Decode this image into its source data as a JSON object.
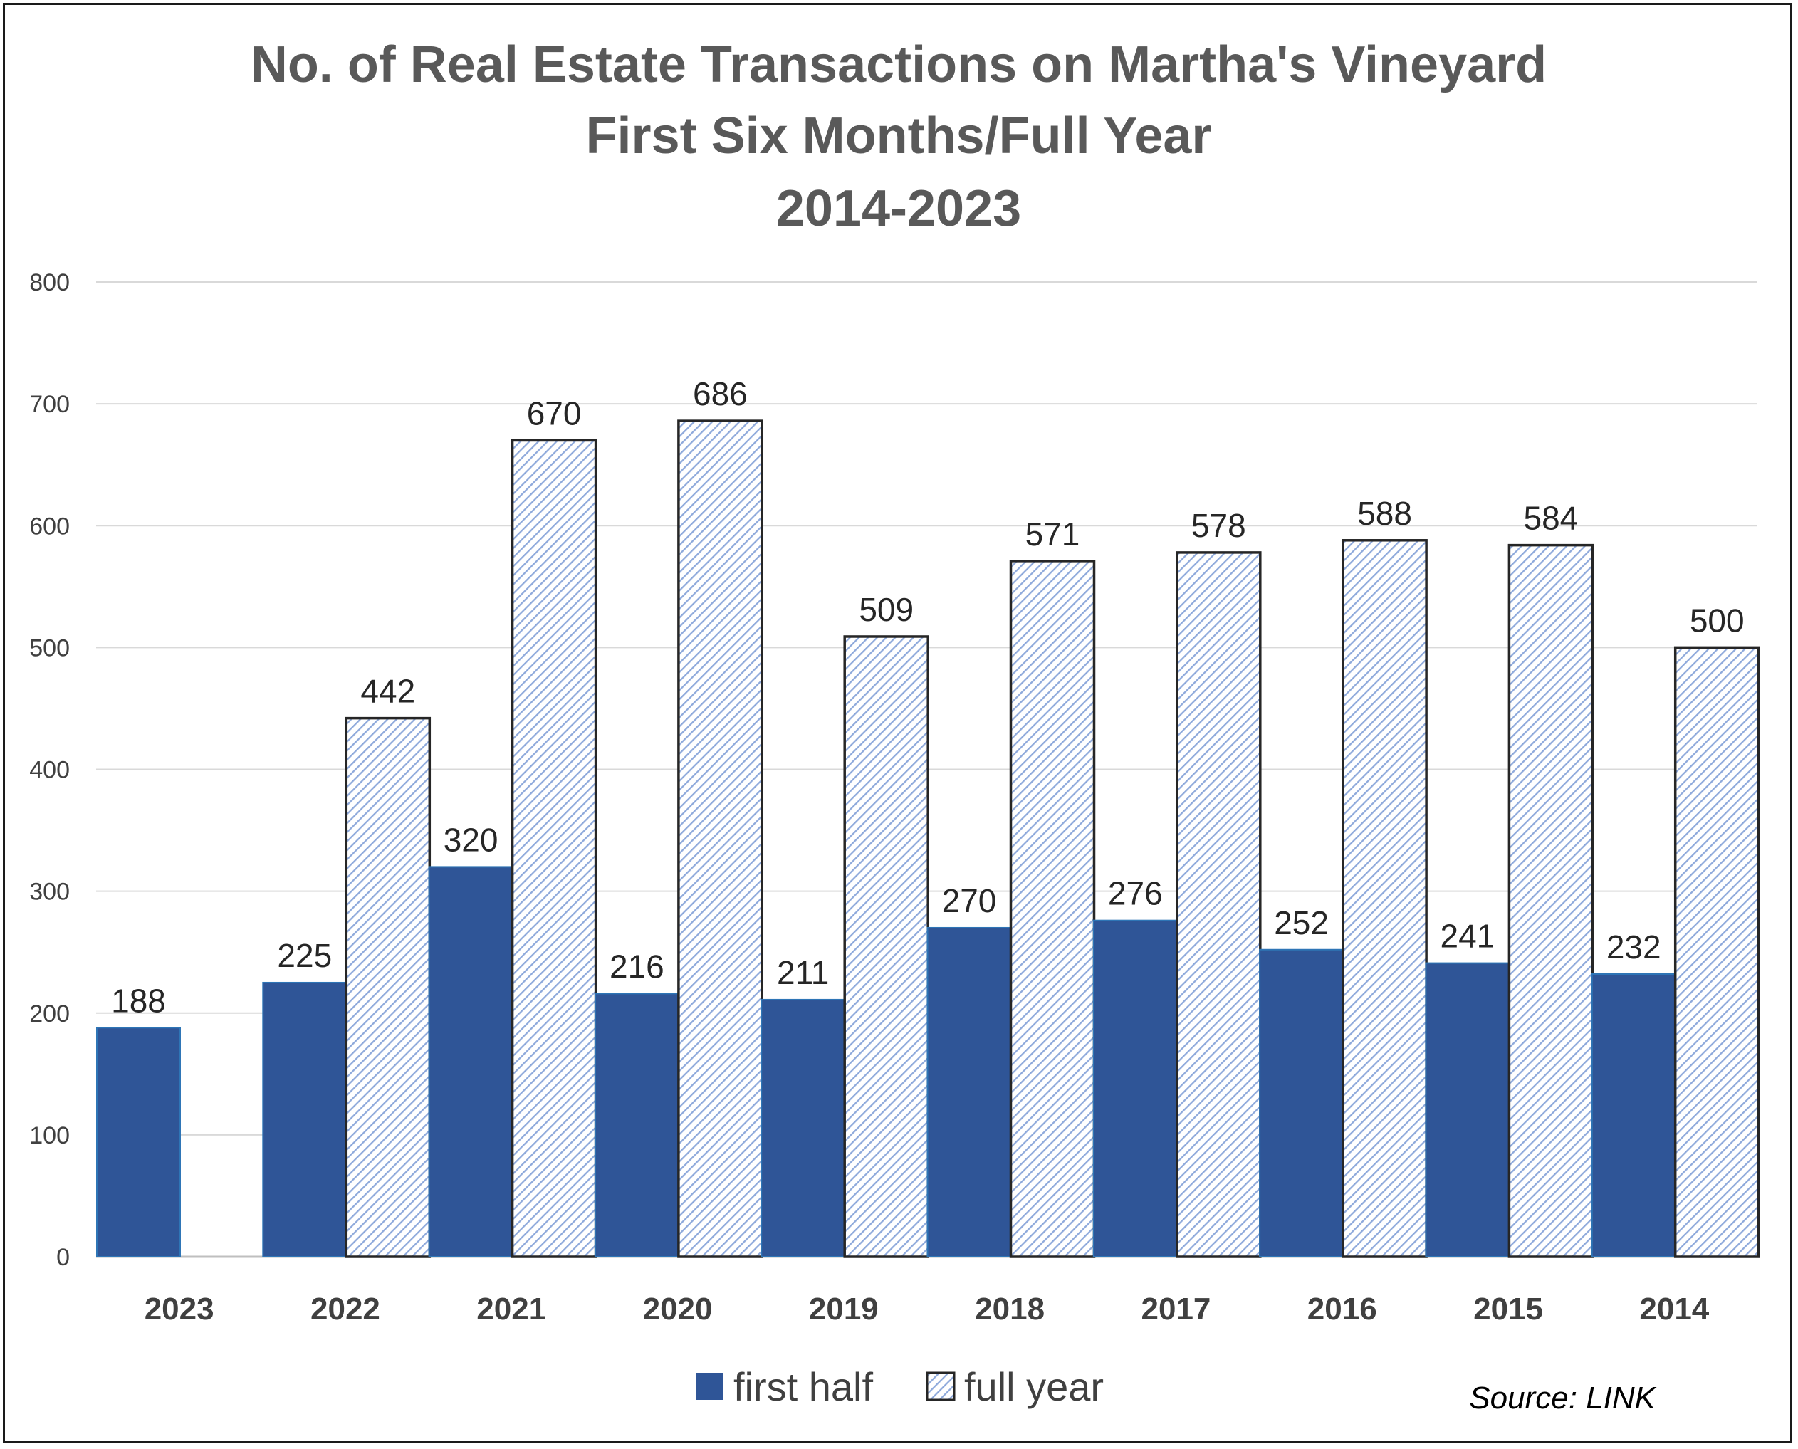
{
  "chart_data": {
    "type": "bar",
    "title_lines": [
      "No. of Real Estate Transactions on Martha's Vineyard",
      "First Six Months/Full Year",
      "2014-2023"
    ],
    "categories": [
      "2023",
      "2022",
      "2021",
      "2020",
      "2019",
      "2018",
      "2017",
      "2016",
      "2015",
      "2014"
    ],
    "series": [
      {
        "name": "first half",
        "values": [
          188,
          225,
          320,
          216,
          211,
          270,
          276,
          252,
          241,
          232
        ]
      },
      {
        "name": "full year",
        "values": [
          null,
          442,
          670,
          686,
          509,
          571,
          578,
          588,
          584,
          500
        ]
      }
    ],
    "ylim": [
      0,
      800
    ],
    "yticks": [
      "0",
      "100",
      "200",
      "300",
      "400",
      "500",
      "600",
      "700",
      "800"
    ],
    "grid": true,
    "legend_position": "bottom",
    "source": "Source: LINK",
    "colors": {
      "first_half": "#2f5597",
      "first_half_edge": "#2e75b6",
      "full_year_fill": "#ffffff",
      "full_year_hatch": "#8ea9db",
      "full_year_edge": "#262626",
      "grid": "#d9d9d9"
    }
  }
}
